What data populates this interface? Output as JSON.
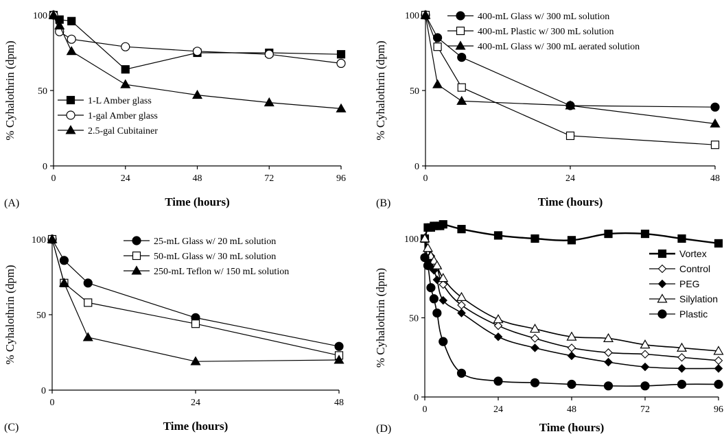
{
  "chart_data": [
    {
      "panel": "(A)",
      "type": "line",
      "xlabel": "Time (hours)",
      "ylabel": "% Cyhalothrin (dpm)",
      "xlim": [
        0,
        96
      ],
      "ylim": [
        0,
        100
      ],
      "xticks": [
        "0",
        "24",
        "48",
        "72",
        "96"
      ],
      "yticks": [
        "0",
        "50",
        "100"
      ],
      "legend_position": "lower-left",
      "series": [
        {
          "name": "1-L Amber glass",
          "marker": "square-filled",
          "x": [
            0,
            2,
            6,
            24,
            48,
            72,
            96
          ],
          "y": [
            100,
            97,
            96,
            64,
            75,
            75,
            74
          ]
        },
        {
          "name": "1-gal Amber glass",
          "marker": "circle-open",
          "x": [
            0,
            2,
            6,
            24,
            48,
            72,
            96
          ],
          "y": [
            100,
            89,
            84,
            79,
            76,
            74,
            68
          ]
        },
        {
          "name": "2.5-gal Cubitainer",
          "marker": "triangle-filled",
          "x": [
            0,
            2,
            6,
            24,
            48,
            72,
            96
          ],
          "y": [
            100,
            93,
            76,
            54,
            47,
            42,
            38
          ]
        }
      ]
    },
    {
      "panel": "(B)",
      "type": "line",
      "xlabel": "Time (hours)",
      "ylabel": "% Cyhalothrin (dpm)",
      "xlim": [
        0,
        48
      ],
      "ylim": [
        0,
        100
      ],
      "xticks": [
        "0",
        "24",
        "48"
      ],
      "yticks": [
        "0",
        "50",
        "100"
      ],
      "legend_position": "top-right",
      "series": [
        {
          "name": "400-mL Glass w/ 300 mL solution",
          "marker": "circle-filled",
          "x": [
            0,
            2,
            6,
            24,
            48
          ],
          "y": [
            100,
            85,
            72,
            40,
            39
          ]
        },
        {
          "name": "400-mL Plastic w/ 300 mL solution",
          "marker": "square-open",
          "x": [
            0,
            2,
            6,
            24,
            48
          ],
          "y": [
            100,
            79,
            52,
            20,
            14
          ]
        },
        {
          "name": "400-mL Glass w/ 300 mL aerated solution",
          "marker": "triangle-filled",
          "x": [
            0,
            2,
            6,
            24,
            48
          ],
          "y": [
            100,
            54,
            43,
            40,
            28
          ]
        }
      ]
    },
    {
      "panel": "(C)",
      "type": "line",
      "xlabel": "Time (hours)",
      "ylabel": "% Cyhalothrin (dpm)",
      "xlim": [
        0,
        48
      ],
      "ylim": [
        0,
        100
      ],
      "xticks": [
        "0",
        "24",
        "48"
      ],
      "yticks": [
        "0",
        "50",
        "100"
      ],
      "legend_position": "top-right",
      "series": [
        {
          "name": "25-mL Glass w/ 20 mL solution",
          "marker": "circle-filled",
          "x": [
            0,
            2,
            6,
            24,
            48
          ],
          "y": [
            100,
            86,
            71,
            48,
            29
          ]
        },
        {
          "name": "50-mL Glass w/ 30 mL solution",
          "marker": "square-open",
          "x": [
            0,
            2,
            6,
            24,
            48
          ],
          "y": [
            100,
            71,
            58,
            44,
            23
          ]
        },
        {
          "name": "250-mL Teflon w/ 150 mL solution",
          "marker": "triangle-filled",
          "x": [
            0,
            2,
            6,
            24,
            48
          ],
          "y": [
            100,
            71,
            35,
            19,
            20
          ]
        }
      ]
    },
    {
      "panel": "(D)",
      "type": "line",
      "xlabel": "Time (hours)",
      "ylabel": "% Cyhalothrin (dpm)",
      "xlim": [
        0,
        96
      ],
      "ylim": [
        0,
        100
      ],
      "xticks": [
        "0",
        "24",
        "48",
        "72",
        "96"
      ],
      "yticks": [
        "0",
        "50",
        "100"
      ],
      "legend_position": "top-right",
      "series": [
        {
          "name": "Vortex",
          "marker": "square-filled",
          "x": [
            0,
            1,
            2,
            3,
            4,
            5,
            6,
            12,
            24,
            36,
            48,
            60,
            72,
            84,
            96
          ],
          "y": [
            100,
            107,
            107,
            108,
            108,
            108,
            109,
            106,
            102,
            100,
            99,
            103,
            103,
            100,
            97
          ]
        },
        {
          "name": "Control",
          "marker": "diamond-open",
          "x": [
            0,
            1,
            2,
            3,
            4,
            6,
            12,
            24,
            36,
            48,
            60,
            72,
            84,
            96
          ],
          "y": [
            100,
            92,
            89,
            85,
            82,
            71,
            58,
            45,
            37,
            31,
            28,
            27,
            25,
            23
          ]
        },
        {
          "name": "PEG",
          "marker": "diamond-filled",
          "x": [
            0,
            1,
            2,
            3,
            4,
            6,
            12,
            24,
            36,
            48,
            60,
            72,
            84,
            96
          ],
          "y": [
            100,
            86,
            82,
            80,
            74,
            61,
            53,
            38,
            31,
            26,
            22,
            19,
            18,
            18
          ]
        },
        {
          "name": "Silylation",
          "marker": "triangle-open",
          "x": [
            0,
            1,
            2,
            3,
            4,
            6,
            12,
            24,
            36,
            48,
            60,
            72,
            84,
            96
          ],
          "y": [
            100,
            94,
            89,
            86,
            83,
            75,
            63,
            49,
            43,
            38,
            37,
            33,
            31,
            29
          ]
        },
        {
          "name": "Plastic",
          "marker": "circle-filled",
          "x": [
            0,
            1,
            2,
            3,
            4,
            6,
            12,
            24,
            36,
            48,
            60,
            72,
            84,
            96
          ],
          "y": [
            88,
            83,
            69,
            62,
            53,
            35,
            15,
            10,
            9,
            8,
            7,
            7,
            8,
            8
          ]
        }
      ]
    }
  ]
}
